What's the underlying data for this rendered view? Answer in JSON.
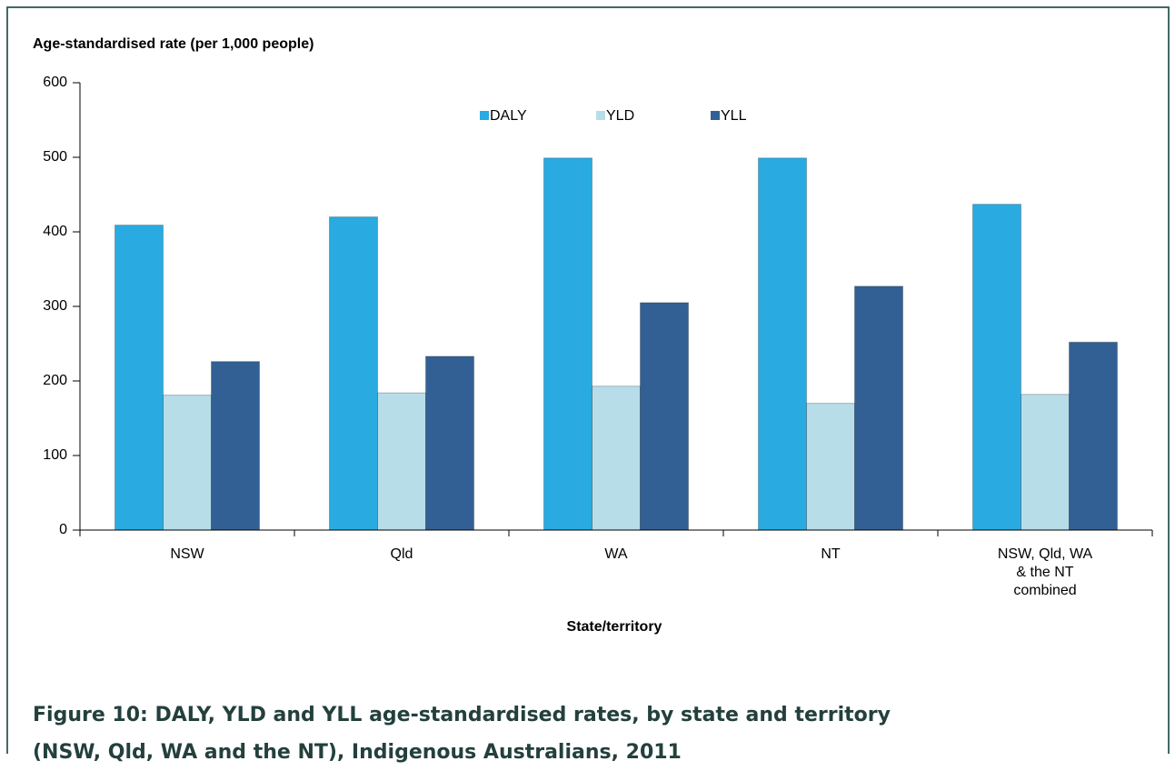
{
  "chart_data": {
    "type": "bar",
    "title": "Figure 10: DALY, YLD and YLL age-standardised rates, by state and territory\n(NSW, Qld, WA and the NT), Indigenous Australians, 2011",
    "y_label": "Age-standardised rate (per 1,000 people)",
    "x_label": "State/territory",
    "categories": [
      "NSW",
      "Qld",
      "WA",
      "NT",
      "NSW, Qld, WA\n& the NT\ncombined"
    ],
    "series": [
      {
        "name": "DALY",
        "color": "#29abe2",
        "values": [
          409,
          420,
          499,
          499,
          437
        ]
      },
      {
        "name": "YLD",
        "color": "#b7dde9",
        "values": [
          181,
          184,
          193,
          170,
          182
        ]
      },
      {
        "name": "YLL",
        "color": "#336094",
        "values": [
          226,
          233,
          305,
          327,
          252
        ]
      }
    ],
    "ylim": [
      0,
      600
    ],
    "yticks": [
      0,
      100,
      200,
      300,
      400,
      500,
      600
    ],
    "grid": false,
    "legend": "top"
  }
}
